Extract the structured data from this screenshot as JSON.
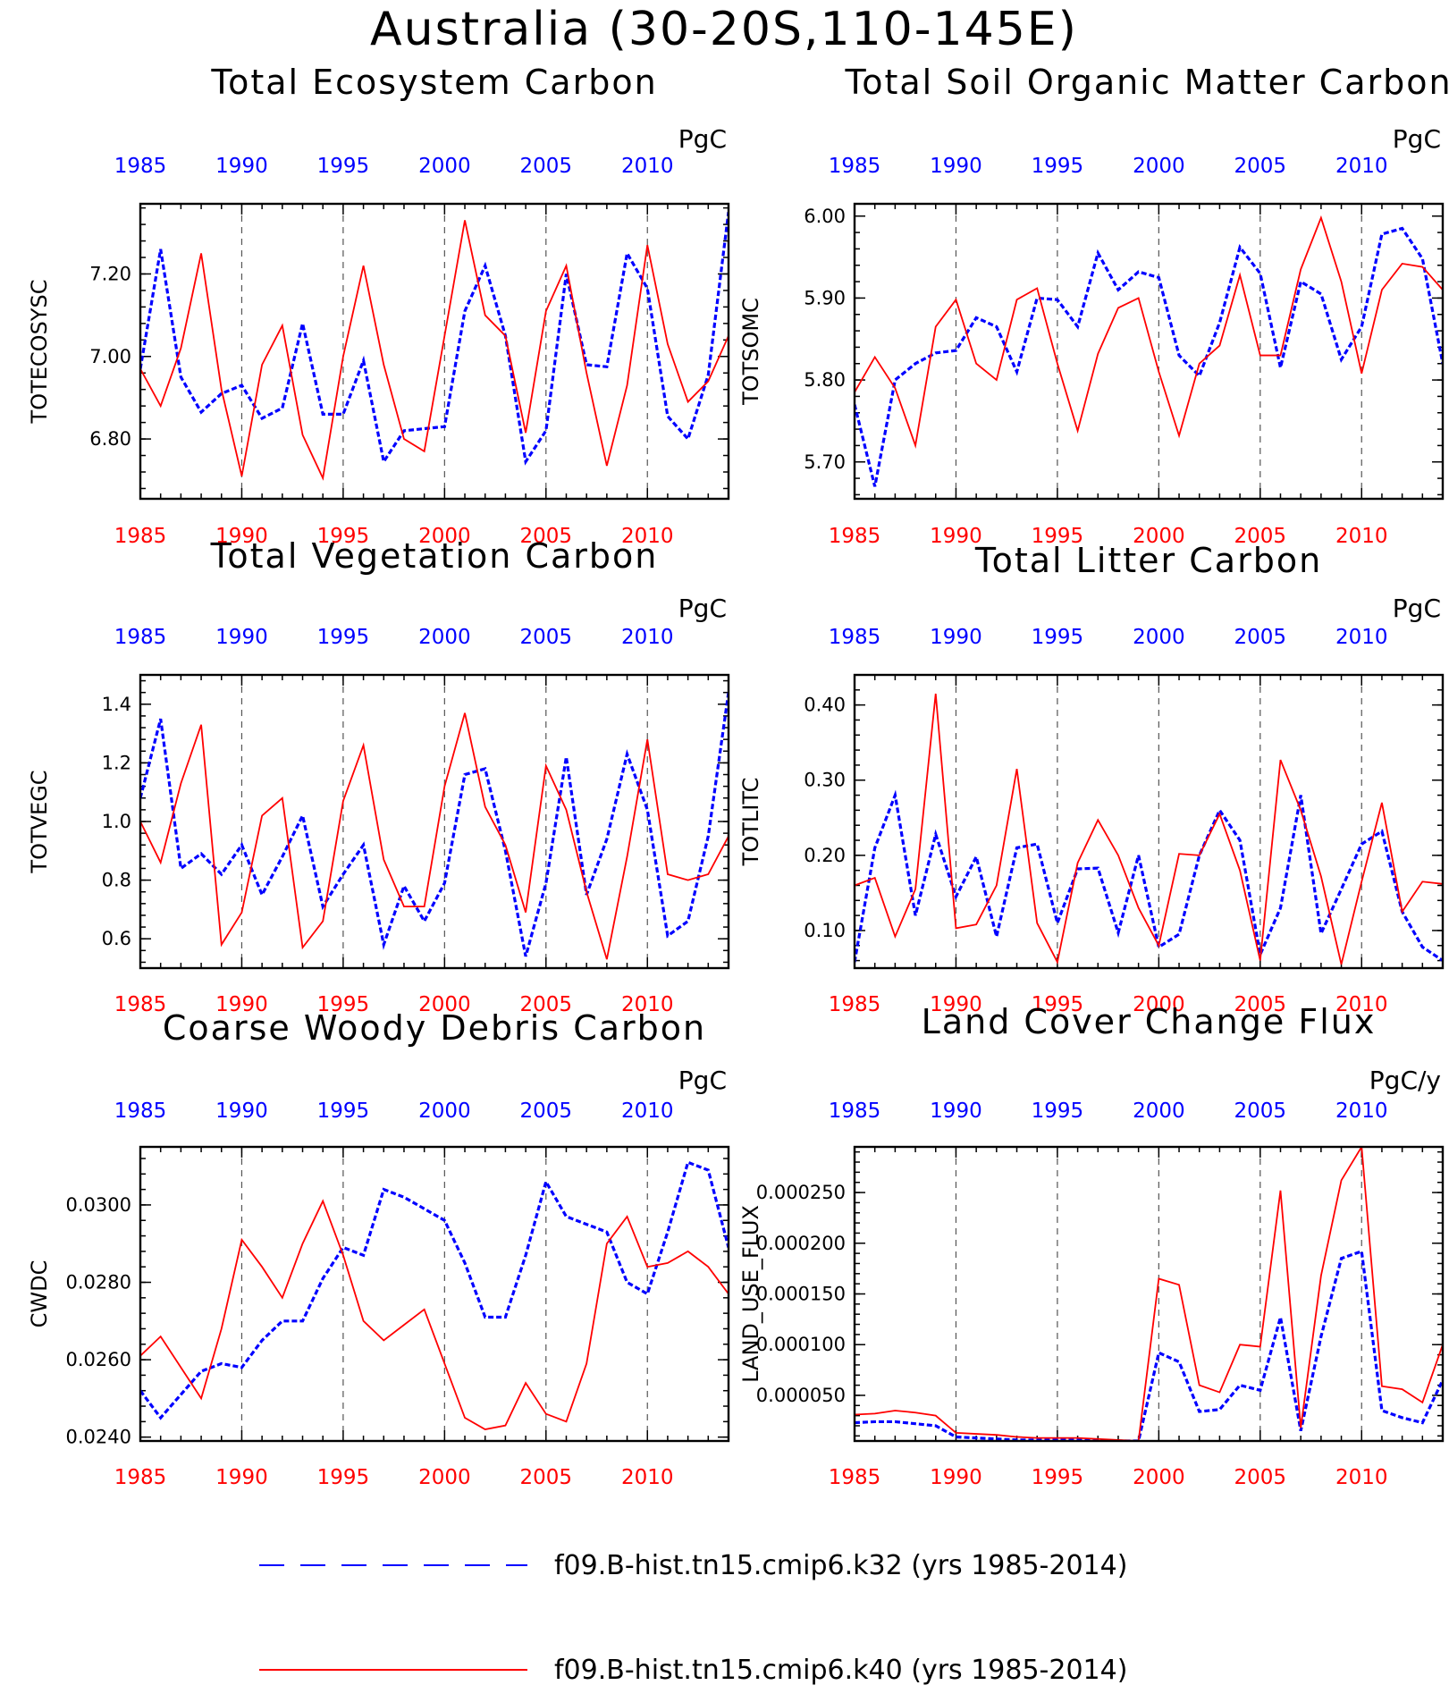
{
  "title": "Australia (30-20S,110-145E)",
  "colors": {
    "k32": "#0000ff",
    "k40": "#ff0000",
    "frame": "#000000",
    "grid": "#555555"
  },
  "legend": [
    {
      "series": "k32",
      "label": "f09.B-hist.tn15.cmip6.k32 (yrs 1985-2014)",
      "style": "dashed",
      "color": "#0000ff"
    },
    {
      "series": "k40",
      "label": "f09.B-hist.tn15.cmip6.k40 (yrs 1985-2014)",
      "style": "solid",
      "color": "#ff0000"
    }
  ],
  "chart_data": [
    {
      "type": "line",
      "title": "Total Ecosystem Carbon",
      "ylabel": "TOTECOSYSC",
      "units": "PgC",
      "xlim": [
        1985,
        2014
      ],
      "ylim": [
        6.655,
        7.37
      ],
      "yticks": [
        "6.80",
        "7.00",
        "7.20"
      ],
      "xticks": [
        1985,
        1990,
        1995,
        2000,
        2005,
        2010
      ],
      "gridlines_x": [
        1990,
        1995,
        2000,
        2005,
        2010
      ],
      "x": [
        1985,
        1986,
        1987,
        1988,
        1989,
        1990,
        1991,
        1992,
        1993,
        1994,
        1995,
        1996,
        1997,
        1998,
        1999,
        2000,
        2001,
        2002,
        2003,
        2004,
        2005,
        2006,
        2007,
        2008,
        2009,
        2010,
        2011,
        2012,
        2013,
        2014
      ],
      "series": [
        {
          "name": "f09.B-hist.tn15.cmip6.k32 (yrs 1985-2014)",
          "key": "k32",
          "values": [
            6.97,
            7.26,
            6.95,
            6.865,
            6.91,
            6.93,
            6.85,
            6.875,
            7.08,
            6.86,
            6.86,
            6.99,
            6.745,
            6.82,
            6.825,
            6.83,
            7.11,
            7.22,
            7.05,
            6.745,
            6.82,
            7.2,
            6.98,
            6.975,
            7.25,
            7.165,
            6.855,
            6.8,
            6.955,
            7.35
          ]
        },
        {
          "name": "f09.B-hist.tn15.cmip6.k40 (yrs 1985-2014)",
          "key": "k40",
          "values": [
            6.97,
            6.88,
            7.02,
            7.25,
            6.92,
            6.71,
            6.98,
            7.075,
            6.81,
            6.705,
            7.0,
            7.22,
            6.98,
            6.8,
            6.77,
            7.05,
            7.33,
            7.1,
            7.05,
            6.815,
            7.11,
            7.22,
            6.96,
            6.735,
            6.93,
            7.27,
            7.03,
            6.89,
            6.94,
            7.05
          ]
        }
      ]
    },
    {
      "type": "line",
      "title": "Total Soil Organic Matter Carbon",
      "ylabel": "TOTSOMC",
      "units": "PgC",
      "xlim": [
        1985,
        2014
      ],
      "ylim": [
        5.655,
        6.015
      ],
      "yticks": [
        "5.70",
        "5.80",
        "5.90",
        "6.00"
      ],
      "xticks": [
        1985,
        1990,
        1995,
        2000,
        2005,
        2010
      ],
      "gridlines_x": [
        1990,
        1995,
        2000,
        2005,
        2010
      ],
      "x": [
        1985,
        1986,
        1987,
        1988,
        1989,
        1990,
        1991,
        1992,
        1993,
        1994,
        1995,
        1996,
        1997,
        1998,
        1999,
        2000,
        2001,
        2002,
        2003,
        2004,
        2005,
        2006,
        2007,
        2008,
        2009,
        2010,
        2011,
        2012,
        2013,
        2014
      ],
      "series": [
        {
          "name": "f09.B-hist.tn15.cmip6.k32 (yrs 1985-2014)",
          "key": "k32",
          "values": [
            5.77,
            5.67,
            5.8,
            5.82,
            5.833,
            5.836,
            5.876,
            5.865,
            5.81,
            5.9,
            5.898,
            5.865,
            5.955,
            5.91,
            5.932,
            5.925,
            5.83,
            5.805,
            5.87,
            5.962,
            5.93,
            5.815,
            5.92,
            5.905,
            5.825,
            5.865,
            5.978,
            5.985,
            5.948,
            5.82
          ]
        },
        {
          "name": "f09.B-hist.tn15.cmip6.k40 (yrs 1985-2014)",
          "key": "k40",
          "values": [
            5.785,
            5.828,
            5.79,
            5.72,
            5.865,
            5.898,
            5.82,
            5.8,
            5.898,
            5.912,
            5.82,
            5.738,
            5.832,
            5.888,
            5.9,
            5.81,
            5.732,
            5.82,
            5.842,
            5.928,
            5.83,
            5.83,
            5.935,
            5.998,
            5.92,
            5.808,
            5.91,
            5.942,
            5.938,
            5.91
          ]
        }
      ]
    },
    {
      "type": "line",
      "title": "Total Vegetation Carbon",
      "ylabel": "TOTVEGC",
      "units": "PgC",
      "xlim": [
        1985,
        2014
      ],
      "ylim": [
        0.5,
        1.5
      ],
      "yticks": [
        "0.6",
        "0.8",
        "1.0",
        "1.2",
        "1.4"
      ],
      "xticks": [
        1985,
        1990,
        1995,
        2000,
        2005,
        2010
      ],
      "gridlines_x": [
        1990,
        1995,
        2000,
        2005,
        2010
      ],
      "x": [
        1985,
        1986,
        1987,
        1988,
        1989,
        1990,
        1991,
        1992,
        1993,
        1994,
        1995,
        1996,
        1997,
        1998,
        1999,
        2000,
        2001,
        2002,
        2003,
        2004,
        2005,
        2006,
        2007,
        2008,
        2009,
        2010,
        2011,
        2012,
        2013,
        2014
      ],
      "series": [
        {
          "name": "f09.B-hist.tn15.cmip6.k32 (yrs 1985-2014)",
          "key": "k32",
          "values": [
            1.08,
            1.35,
            0.84,
            0.89,
            0.82,
            0.92,
            0.75,
            0.88,
            1.02,
            0.71,
            0.82,
            0.92,
            0.58,
            0.78,
            0.66,
            0.79,
            1.16,
            1.18,
            0.9,
            0.54,
            0.79,
            1.22,
            0.75,
            0.94,
            1.23,
            1.04,
            0.61,
            0.66,
            0.95,
            1.44
          ]
        },
        {
          "name": "f09.B-hist.tn15.cmip6.k40 (yrs 1985-2014)",
          "key": "k40",
          "values": [
            1.0,
            0.86,
            1.13,
            1.33,
            0.58,
            0.69,
            1.02,
            1.08,
            0.57,
            0.66,
            1.07,
            1.26,
            0.87,
            0.71,
            0.71,
            1.12,
            1.37,
            1.05,
            0.92,
            0.69,
            1.19,
            1.04,
            0.76,
            0.53,
            0.88,
            1.28,
            0.82,
            0.8,
            0.82,
            0.95
          ]
        }
      ]
    },
    {
      "type": "line",
      "title": "Total Litter Carbon",
      "ylabel": "TOTLITC",
      "units": "PgC",
      "xlim": [
        1985,
        2014
      ],
      "ylim": [
        0.05,
        0.44
      ],
      "yticks": [
        "0.10",
        "0.20",
        "0.30",
        "0.40"
      ],
      "xticks": [
        1985,
        1990,
        1995,
        2000,
        2005,
        2010
      ],
      "gridlines_x": [
        1990,
        1995,
        2000,
        2005,
        2010
      ],
      "x": [
        1985,
        1986,
        1987,
        1988,
        1989,
        1990,
        1991,
        1992,
        1993,
        1994,
        1995,
        1996,
        1997,
        1998,
        1999,
        2000,
        2001,
        2002,
        2003,
        2004,
        2005,
        2006,
        2007,
        2008,
        2009,
        2010,
        2011,
        2012,
        2013,
        2014
      ],
      "series": [
        {
          "name": "f09.B-hist.tn15.cmip6.k32 (yrs 1985-2014)",
          "key": "k32",
          "values": [
            0.058,
            0.21,
            0.28,
            0.12,
            0.228,
            0.145,
            0.198,
            0.092,
            0.21,
            0.215,
            0.11,
            0.182,
            0.183,
            0.097,
            0.2,
            0.078,
            0.095,
            0.2,
            0.26,
            0.22,
            0.068,
            0.13,
            0.28,
            0.096,
            0.155,
            0.215,
            0.232,
            0.125,
            0.078,
            0.06
          ]
        },
        {
          "name": "f09.B-hist.tn15.cmip6.k40 (yrs 1985-2014)",
          "key": "k40",
          "values": [
            0.16,
            0.17,
            0.092,
            0.155,
            0.415,
            0.103,
            0.108,
            0.16,
            0.315,
            0.11,
            0.058,
            0.19,
            0.247,
            0.2,
            0.13,
            0.08,
            0.202,
            0.2,
            0.255,
            0.18,
            0.06,
            0.327,
            0.26,
            0.172,
            0.055,
            0.165,
            0.27,
            0.125,
            0.165,
            0.162
          ]
        }
      ]
    },
    {
      "type": "line",
      "title": "Coarse Woody Debris Carbon",
      "ylabel": "CWDC",
      "units": "PgC",
      "xlim": [
        1985,
        2014
      ],
      "ylim": [
        0.0239,
        0.0315
      ],
      "yticks": [
        "0.0240",
        "0.0260",
        "0.0280",
        "0.0300"
      ],
      "xticks": [
        1985,
        1990,
        1995,
        2000,
        2005,
        2010
      ],
      "gridlines_x": [
        1990,
        1995,
        2000,
        2005,
        2010
      ],
      "x": [
        1985,
        1986,
        1987,
        1988,
        1989,
        1990,
        1991,
        1992,
        1993,
        1994,
        1995,
        1996,
        1997,
        1998,
        1999,
        2000,
        2001,
        2002,
        2003,
        2004,
        2005,
        2006,
        2007,
        2008,
        2009,
        2010,
        2011,
        2012,
        2013,
        2014
      ],
      "series": [
        {
          "name": "f09.B-hist.tn15.cmip6.k32 (yrs 1985-2014)",
          "key": "k32",
          "values": [
            0.0252,
            0.0245,
            0.0251,
            0.0257,
            0.0259,
            0.0258,
            0.0265,
            0.027,
            0.027,
            0.0281,
            0.0289,
            0.0287,
            0.0304,
            0.0302,
            0.0299,
            0.0296,
            0.0285,
            0.0271,
            0.0271,
            0.0287,
            0.0306,
            0.0297,
            0.0295,
            0.0293,
            0.028,
            0.0277,
            0.0293,
            0.0311,
            0.0309,
            0.0289
          ]
        },
        {
          "name": "f09.B-hist.tn15.cmip6.k40 (yrs 1985-2014)",
          "key": "k40",
          "values": [
            0.0261,
            0.0266,
            0.0258,
            0.025,
            0.0268,
            0.0291,
            0.0284,
            0.0276,
            0.029,
            0.0301,
            0.0287,
            0.027,
            0.0265,
            0.0269,
            0.0273,
            0.0259,
            0.0245,
            0.0242,
            0.0243,
            0.0254,
            0.0246,
            0.0244,
            0.0259,
            0.029,
            0.0297,
            0.0284,
            0.0285,
            0.0288,
            0.0284,
            0.0277
          ]
        }
      ]
    },
    {
      "type": "line",
      "title": "Land Cover Change Flux",
      "ylabel": "LAND_USE_FLUX",
      "units": "PgC/y",
      "xlim": [
        1985,
        2014
      ],
      "ylim": [
        5e-06,
        0.000295
      ],
      "yticks": [
        "0.000050",
        "0.000100",
        "0.000150",
        "0.000200",
        "0.000250"
      ],
      "xticks": [
        1985,
        1990,
        1995,
        2000,
        2005,
        2010
      ],
      "gridlines_x": [
        1990,
        1995,
        2000,
        2005,
        2010
      ],
      "x": [
        1985,
        1986,
        1987,
        1988,
        1989,
        1990,
        1991,
        1992,
        1993,
        1994,
        1995,
        1996,
        1997,
        1998,
        1999,
        2000,
        2001,
        2002,
        2003,
        2004,
        2005,
        2006,
        2007,
        2008,
        2009,
        2010,
        2011,
        2012,
        2013,
        2014
      ],
      "series": [
        {
          "name": "f09.B-hist.tn15.cmip6.k32 (yrs 1985-2014)",
          "key": "k32",
          "values": [
            2.3e-05,
            2.4e-05,
            2.4e-05,
            2.2e-05,
            2e-05,
            9e-06,
            8e-06,
            7e-06,
            6e-06,
            6e-06,
            6e-06,
            6e-06,
            5e-06,
            5e-06,
            5e-06,
            9.2e-05,
            8.3e-05,
            3.4e-05,
            3.6e-05,
            6e-05,
            5.5e-05,
            0.000127,
            1.5e-05,
            0.000108,
            0.000185,
            0.000192,
            3.5e-05,
            2.8e-05,
            2.3e-05,
            6.5e-05
          ]
        },
        {
          "name": "f09.B-hist.tn15.cmip6.k40 (yrs 1985-2014)",
          "key": "k40",
          "values": [
            3.1e-05,
            3.2e-05,
            3.5e-05,
            3.3e-05,
            3e-05,
            1.3e-05,
            1.2e-05,
            1.1e-05,
            9e-06,
            8e-06,
            8e-06,
            8e-06,
            7e-06,
            6e-06,
            5e-06,
            0.000165,
            0.000159,
            6e-05,
            5.3e-05,
            0.0001,
            9.8e-05,
            0.000252,
            1.8e-05,
            0.000168,
            0.000262,
            0.000295,
            5.9e-05,
            5.6e-05,
            4.3e-05,
            0.0001
          ]
        }
      ]
    }
  ]
}
